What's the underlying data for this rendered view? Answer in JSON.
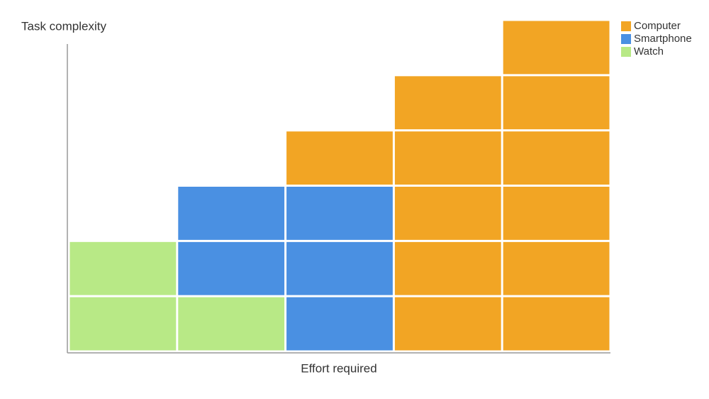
{
  "chart_data": {
    "type": "bar",
    "stacked": true,
    "y_label": "Task complexity",
    "x_label": "Effort required",
    "categories": [
      null,
      null,
      null,
      null,
      null
    ],
    "series": [
      {
        "name": "Computer",
        "color": "#f2a524",
        "values": [
          0,
          0,
          1,
          5,
          6
        ]
      },
      {
        "name": "Smartphone",
        "color": "#4a90e2",
        "values": [
          0,
          2,
          3,
          0,
          0
        ]
      },
      {
        "name": "Watch",
        "color": "#b8e986",
        "values": [
          2,
          1,
          0,
          0,
          0
        ]
      }
    ],
    "ylim": [
      0,
      6
    ],
    "legend": "top-right"
  }
}
